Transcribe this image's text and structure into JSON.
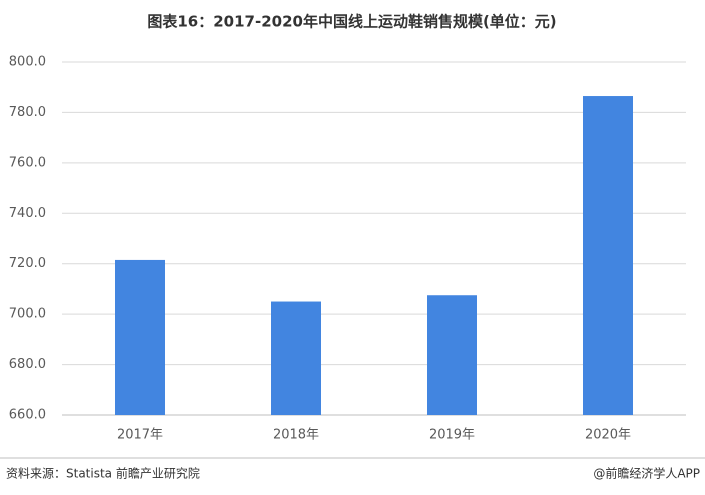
{
  "chart_data": {
    "type": "bar",
    "title": "图表16：2017-2020年中国线上运动鞋销售规模(单位：元)",
    "categories": [
      "2017年",
      "2018年",
      "2019年",
      "2020年"
    ],
    "values": [
      721.5,
      705,
      707.5,
      786.5
    ],
    "color": "#4285e0",
    "ylim": [
      660,
      800
    ],
    "yticks": [
      {
        "value": 660,
        "label": "660.0"
      },
      {
        "value": 680,
        "label": "680.0"
      },
      {
        "value": 700,
        "label": "700.0"
      },
      {
        "value": 720,
        "label": "720.0"
      },
      {
        "value": 740,
        "label": "740.0"
      },
      {
        "value": 760,
        "label": "760.0"
      },
      {
        "value": 780,
        "label": "780.0"
      },
      {
        "value": 800,
        "label": "800.0"
      }
    ],
    "grid": true,
    "source": "资料来源：Statista 前瞻产业研究院",
    "credit": "@前瞻经济学人APP"
  }
}
